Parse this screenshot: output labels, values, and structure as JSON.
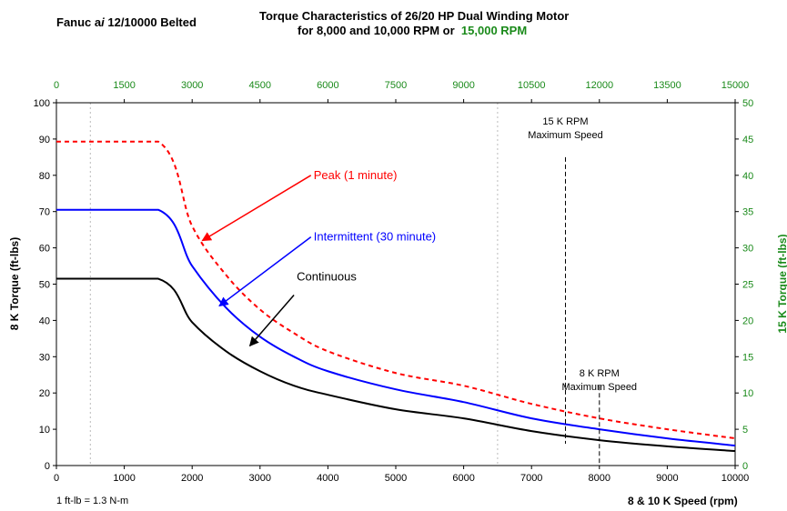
{
  "header": {
    "motor": "Fanuc a",
    "motor_italic": "i",
    "motor_rest": " 12/10000 Belted",
    "title_line1": "Torque Characteristics of 26/20 HP Dual Winding Motor",
    "title_line2": "for 8,000 and 10,000 RPM or",
    "title_line2_green": "15,000 RPM"
  },
  "footer": {
    "conversion_note": "1 ft-lb = 1.3 N-m",
    "x_axis_label": "8 & 10 K Speed (rpm)"
  },
  "colors": {
    "peak": "#ff0000",
    "intermittent": "#0000ff",
    "continuous": "#000000",
    "secondary_axis": "#1a8a1a"
  },
  "chart_data": {
    "type": "line",
    "xlabel": "8 & 10 K Speed (rpm)",
    "ylabel": "8 K Torque (ft-lbs)",
    "xlim": [
      0,
      10000
    ],
    "ylim": [
      0,
      100
    ],
    "x_ticks": [
      0,
      1000,
      2000,
      3000,
      4000,
      5000,
      6000,
      7000,
      8000,
      9000,
      10000
    ],
    "y_ticks": [
      0,
      10,
      20,
      30,
      40,
      50,
      60,
      70,
      80,
      90,
      100
    ],
    "x2label": "",
    "x2_ticks": [
      0,
      1500,
      3000,
      4500,
      6000,
      7500,
      9000,
      10500,
      12000,
      13500,
      15000
    ],
    "y2label": "15 K Torque (ft-lbs)",
    "y2lim": [
      0,
      50
    ],
    "y2_ticks": [
      0,
      5,
      10,
      15,
      20,
      25,
      30,
      35,
      40,
      45,
      50
    ],
    "grid": "vertical dotted lines at 500 and 6500 rpm",
    "series": [
      {
        "name": "Peak (1 minute)",
        "style": "dashed",
        "color": "#ff0000",
        "x": [
          0,
          1500,
          2000,
          2500,
          3000,
          3500,
          4000,
          5000,
          6000,
          7000,
          8000,
          9000,
          10000
        ],
        "y": [
          89.3,
          89.3,
          66,
          52.5,
          43,
          36.5,
          31.5,
          25.5,
          22,
          17,
          13,
          10,
          7.5
        ]
      },
      {
        "name": "Intermittent (30 minute)",
        "style": "solid",
        "color": "#0000ff",
        "x": [
          0,
          1500,
          2000,
          2500,
          3000,
          3500,
          4000,
          5000,
          6000,
          7000,
          8000,
          9000,
          10000
        ],
        "y": [
          70.5,
          70.5,
          55,
          43.5,
          35.5,
          30,
          26,
          21,
          17.5,
          13,
          10,
          7.5,
          5.5
        ]
      },
      {
        "name": "Continuous",
        "style": "solid",
        "color": "#000000",
        "x": [
          0,
          1500,
          2000,
          2500,
          3000,
          3500,
          4000,
          5000,
          6000,
          7000,
          8000,
          9000,
          10000
        ],
        "y": [
          51.5,
          51.5,
          39.5,
          31.5,
          26,
          22,
          19.5,
          15.5,
          13,
          9.5,
          7,
          5.3,
          4
        ]
      }
    ],
    "markers": [
      {
        "x": 7500,
        "y_top": 85,
        "y_bottom": 6,
        "label_line1": "15 K RPM",
        "label_line2": "Maximum Speed"
      },
      {
        "x": 8000,
        "y_top": 22,
        "y_bottom": 0,
        "label_line1": "8 K RPM",
        "label_line2": "Maximum Speed"
      }
    ],
    "annotations": [
      {
        "text": "Peak (1 minute)",
        "series": "Peak (1 minute)",
        "text_at": [
          3750,
          80
        ],
        "arrow_from": [
          3750,
          80
        ],
        "arrow_to": [
          2150,
          62
        ]
      },
      {
        "text": "Intermittent (30 minute)",
        "series": "Intermittent (30 minute)",
        "text_at": [
          3750,
          63
        ],
        "arrow_from": [
          3750,
          63
        ],
        "arrow_to": [
          2400,
          44
        ]
      },
      {
        "text": "Continuous",
        "series": "Continuous",
        "text_at": [
          3500,
          52
        ],
        "arrow_from": [
          3500,
          47
        ],
        "arrow_to": [
          2850,
          33
        ]
      }
    ]
  }
}
